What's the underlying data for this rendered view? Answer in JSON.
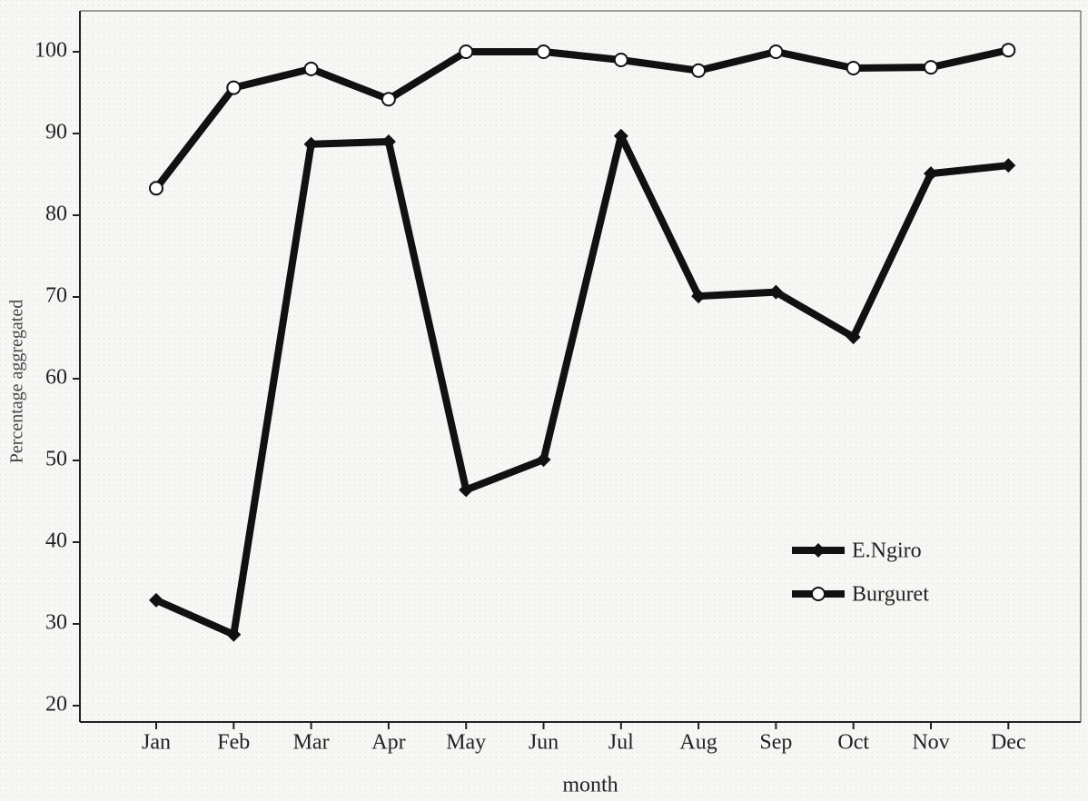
{
  "chart_data": {
    "type": "line",
    "x_label": "month",
    "y_label": "Percentage aggregated",
    "categories": [
      "Jan",
      "Feb",
      "Mar",
      "Apr",
      "May",
      "Jun",
      "Jul",
      "Aug",
      "Sep",
      "Oct",
      "Nov",
      "Dec"
    ],
    "series": [
      {
        "name": "E.Ngiro",
        "color": "#111111",
        "marker": "filled-diamond",
        "values": [
          32.9,
          28.7,
          88.7,
          89,
          46.4,
          50.1,
          89.7,
          70.1,
          70.6,
          65.1,
          85.1,
          86.1
        ]
      },
      {
        "name": "Burguret",
        "color": "#111111",
        "marker": "open-circle",
        "values": [
          83.3,
          95.6,
          97.9,
          94.2,
          100,
          100,
          99,
          97.7,
          100,
          98,
          98.1,
          100.2
        ]
      }
    ],
    "ylim": [
      18,
      105
    ],
    "yticks": [
      20,
      30,
      40,
      50,
      60,
      70,
      80,
      90,
      100
    ],
    "legend": "lower right"
  }
}
